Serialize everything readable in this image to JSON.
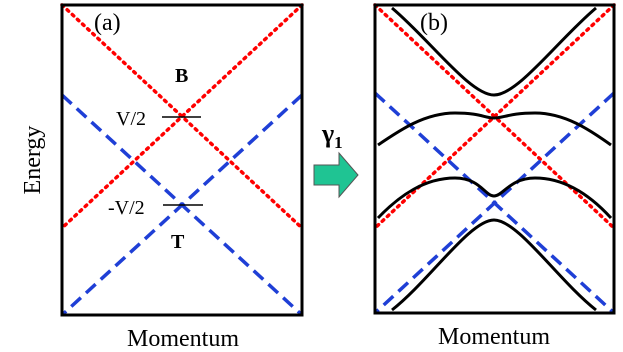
{
  "y_axis_label": "Energy",
  "panel_a": {
    "tag": "(a)",
    "band_top_label": "B",
    "band_bottom_label": "T",
    "level_upper": "V/2",
    "level_lower": "-V/2",
    "x_axis_label": "Momentum"
  },
  "panel_b": {
    "tag": "(b)",
    "x_axis_label": "Momentum"
  },
  "arrow": {
    "symbol": "γ",
    "subscript": "1"
  },
  "colors": {
    "red_band": "#ff0000",
    "blue_band": "#1f3fd6",
    "black_band": "#000000",
    "arrow_fill": "#1fc493",
    "label_red": "#ff0000",
    "label_blue": "#1f3fd6"
  }
}
